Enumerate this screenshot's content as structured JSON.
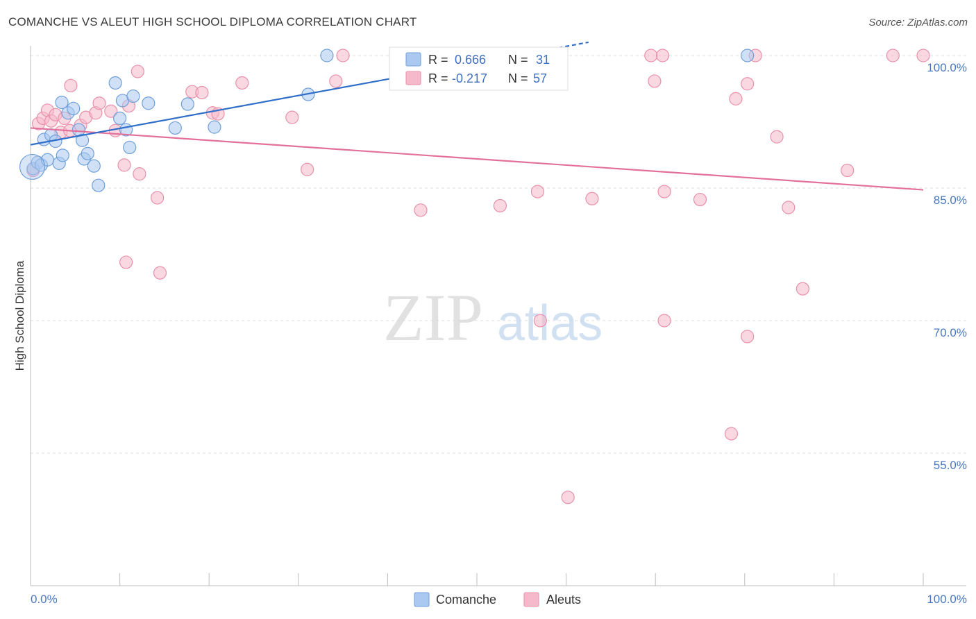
{
  "title": "COMANCHE VS ALEUT HIGH SCHOOL DIPLOMA CORRELATION CHART",
  "source": "Source: ZipAtlas.com",
  "watermark": {
    "zip": "ZIP",
    "atlas": "atlas"
  },
  "colors": {
    "comanche_fill": "#aac8f0",
    "comanche_stroke": "#6f9fd8",
    "comanche_line": "#2f6fca",
    "aleut_fill": "#f6b8cb",
    "aleut_stroke": "#e890aa",
    "aleut_line": "#e3709a",
    "tick_text": "#4a78c0",
    "grid": "#dddddd"
  },
  "legend_box": {
    "rows": [
      {
        "r_label": "R =",
        "r_value": "0.666",
        "n_label": "N =",
        "n_value": "31"
      },
      {
        "r_label": "R =",
        "r_value": "-0.217",
        "n_label": "N =",
        "n_value": "57"
      }
    ]
  },
  "chart_data": {
    "type": "scatter",
    "title": "COMANCHE VS ALEUT HIGH SCHOOL DIPLOMA CORRELATION CHART",
    "xlabel": "",
    "ylabel": "High School Diploma",
    "xlim": [
      0,
      100
    ],
    "ylim": [
      39.5,
      101.5
    ],
    "x_tick_labels": [
      "0.0%",
      "100.0%"
    ],
    "y_ticks": [
      55,
      70,
      85,
      100
    ],
    "y_tick_labels": [
      "55.0%",
      "70.0%",
      "85.0%",
      "100.0%"
    ],
    "grid": true,
    "legend_position": "bottom-center",
    "series": [
      {
        "name": "Comanche",
        "r": 0.666,
        "n": 31,
        "trend": {
          "x": [
            0,
            62.5
          ],
          "y": [
            89.9,
            101.5
          ]
        },
        "trend_dashed_from_x": 40,
        "points": [
          [
            0.3,
            87.2
          ],
          [
            0.8,
            87.9
          ],
          [
            1.2,
            87.6
          ],
          [
            1.5,
            90.5
          ],
          [
            1.9,
            88.2
          ],
          [
            2.3,
            91.0
          ],
          [
            2.8,
            90.3
          ],
          [
            3.2,
            87.8
          ],
          [
            3.6,
            88.7
          ],
          [
            3.5,
            94.7
          ],
          [
            4.2,
            93.5
          ],
          [
            4.8,
            94.0
          ],
          [
            5.4,
            91.6
          ],
          [
            5.8,
            90.4
          ],
          [
            6.0,
            88.3
          ],
          [
            6.4,
            88.9
          ],
          [
            7.1,
            87.5
          ],
          [
            7.6,
            85.3
          ],
          [
            9.5,
            96.9
          ],
          [
            10.0,
            92.9
          ],
          [
            10.3,
            94.9
          ],
          [
            10.7,
            91.6
          ],
          [
            11.1,
            89.6
          ],
          [
            11.5,
            95.4
          ],
          [
            13.2,
            94.6
          ],
          [
            16.2,
            91.8
          ],
          [
            17.6,
            94.5
          ],
          [
            20.6,
            91.9
          ],
          [
            31.1,
            95.6
          ],
          [
            33.2,
            100.0
          ],
          [
            80.3,
            100.0
          ]
        ]
      },
      {
        "name": "Aleuts",
        "r": -0.217,
        "n": 57,
        "trend": {
          "x": [
            0,
            100
          ],
          "y": [
            91.8,
            84.8
          ]
        },
        "points": [
          [
            0.3,
            87.0
          ],
          [
            0.9,
            92.3
          ],
          [
            1.4,
            92.9
          ],
          [
            1.9,
            93.8
          ],
          [
            2.3,
            92.6
          ],
          [
            2.8,
            93.3
          ],
          [
            3.4,
            91.3
          ],
          [
            3.8,
            92.9
          ],
          [
            4.5,
            96.6
          ],
          [
            4.4,
            91.5
          ],
          [
            5.6,
            92.1
          ],
          [
            6.2,
            93.0
          ],
          [
            7.3,
            93.5
          ],
          [
            7.7,
            94.6
          ],
          [
            9.0,
            93.7
          ],
          [
            9.5,
            91.5
          ],
          [
            10.5,
            87.6
          ],
          [
            11.0,
            94.3
          ],
          [
            12.0,
            98.2
          ],
          [
            12.2,
            86.6
          ],
          [
            14.2,
            83.9
          ],
          [
            18.1,
            95.9
          ],
          [
            19.2,
            95.8
          ],
          [
            20.4,
            93.5
          ],
          [
            21.0,
            93.4
          ],
          [
            23.7,
            96.9
          ],
          [
            29.3,
            93.0
          ],
          [
            31.0,
            87.1
          ],
          [
            34.2,
            97.1
          ],
          [
            35.0,
            100.0
          ],
          [
            43.7,
            82.5
          ],
          [
            47.1,
            100.0
          ],
          [
            52.6,
            83.0
          ],
          [
            55.9,
            100.0
          ],
          [
            56.8,
            84.6
          ],
          [
            62.9,
            83.8
          ],
          [
            69.5,
            100.0
          ],
          [
            69.9,
            97.1
          ],
          [
            70.8,
            100.0
          ],
          [
            71.0,
            84.6
          ],
          [
            75.0,
            83.7
          ],
          [
            79.0,
            95.1
          ],
          [
            80.3,
            96.8
          ],
          [
            81.2,
            100.0
          ],
          [
            83.6,
            90.8
          ],
          [
            84.9,
            82.8
          ],
          [
            96.6,
            100.0
          ],
          [
            100.0,
            100.0
          ],
          [
            10.7,
            76.6
          ],
          [
            14.5,
            75.4
          ],
          [
            86.5,
            73.6
          ],
          [
            57.1,
            70.0
          ],
          [
            71.0,
            70.0
          ],
          [
            80.3,
            68.2
          ],
          [
            78.5,
            57.2
          ],
          [
            60.2,
            50.0
          ],
          [
            91.5,
            87.0
          ]
        ]
      }
    ]
  }
}
